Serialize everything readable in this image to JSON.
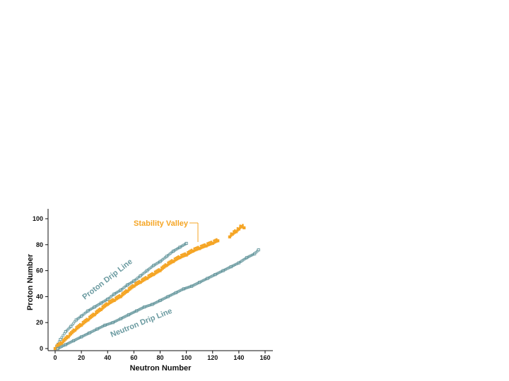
{
  "chart_data": {
    "type": "scatter",
    "title": "",
    "xlabel": "Neutron Number",
    "ylabel": "Proton Number",
    "xlim": [
      0,
      160
    ],
    "ylim": [
      0,
      100
    ],
    "xticks": [
      "0",
      "20",
      "40",
      "60",
      "80",
      "100",
      "120",
      "140",
      "160"
    ],
    "yticks": [
      "0",
      "20",
      "40",
      "60",
      "80",
      "100"
    ],
    "grid": false,
    "annotations": {
      "proton_drip": "Proton Drip Line",
      "neutron_drip": "Neutron Drip Line",
      "stability": "Stability Valley"
    },
    "colors": {
      "drip_line": "#6a9aa0",
      "stability": "#f5a524",
      "axis": "#111111"
    },
    "series": [
      {
        "name": "Proton Drip Line",
        "x": [
          0,
          4,
          8,
          12,
          16,
          20,
          25,
          30,
          35,
          40,
          45,
          50,
          55,
          60,
          65,
          70,
          75,
          80,
          85,
          90,
          95,
          100
        ],
        "y": [
          0,
          7,
          13,
          17,
          22,
          25,
          29,
          32,
          35,
          38,
          42,
          45,
          49,
          52,
          56,
          60,
          64,
          67,
          71,
          75,
          78,
          81
        ]
      },
      {
        "name": "Stability Valley",
        "x": [
          0,
          5,
          10,
          15,
          20,
          25,
          30,
          35,
          40,
          45,
          50,
          55,
          60,
          65,
          70,
          75,
          80,
          85,
          90,
          95,
          100,
          105,
          110,
          115,
          120,
          124,
          133,
          135,
          138,
          140,
          142,
          144
        ],
        "y": [
          0,
          4,
          9,
          14,
          18,
          22,
          26,
          30,
          34,
          37,
          40,
          44,
          48,
          51,
          54,
          57,
          60,
          64,
          67,
          70,
          72,
          75,
          77,
          79,
          81,
          83,
          86,
          88,
          90,
          92,
          94,
          93
        ]
      },
      {
        "name": "Neutron Drip Line",
        "x": [
          2,
          8,
          14,
          20,
          26,
          32,
          38,
          44,
          50,
          56,
          62,
          68,
          74,
          80,
          86,
          92,
          98,
          104,
          110,
          116,
          122,
          128,
          134,
          140,
          146,
          152,
          155
        ],
        "y": [
          0,
          3,
          6,
          9,
          12,
          15,
          18,
          20,
          23,
          26,
          29,
          32,
          34,
          37,
          40,
          43,
          46,
          48,
          51,
          54,
          57,
          60,
          63,
          66,
          70,
          73,
          76
        ]
      }
    ]
  }
}
